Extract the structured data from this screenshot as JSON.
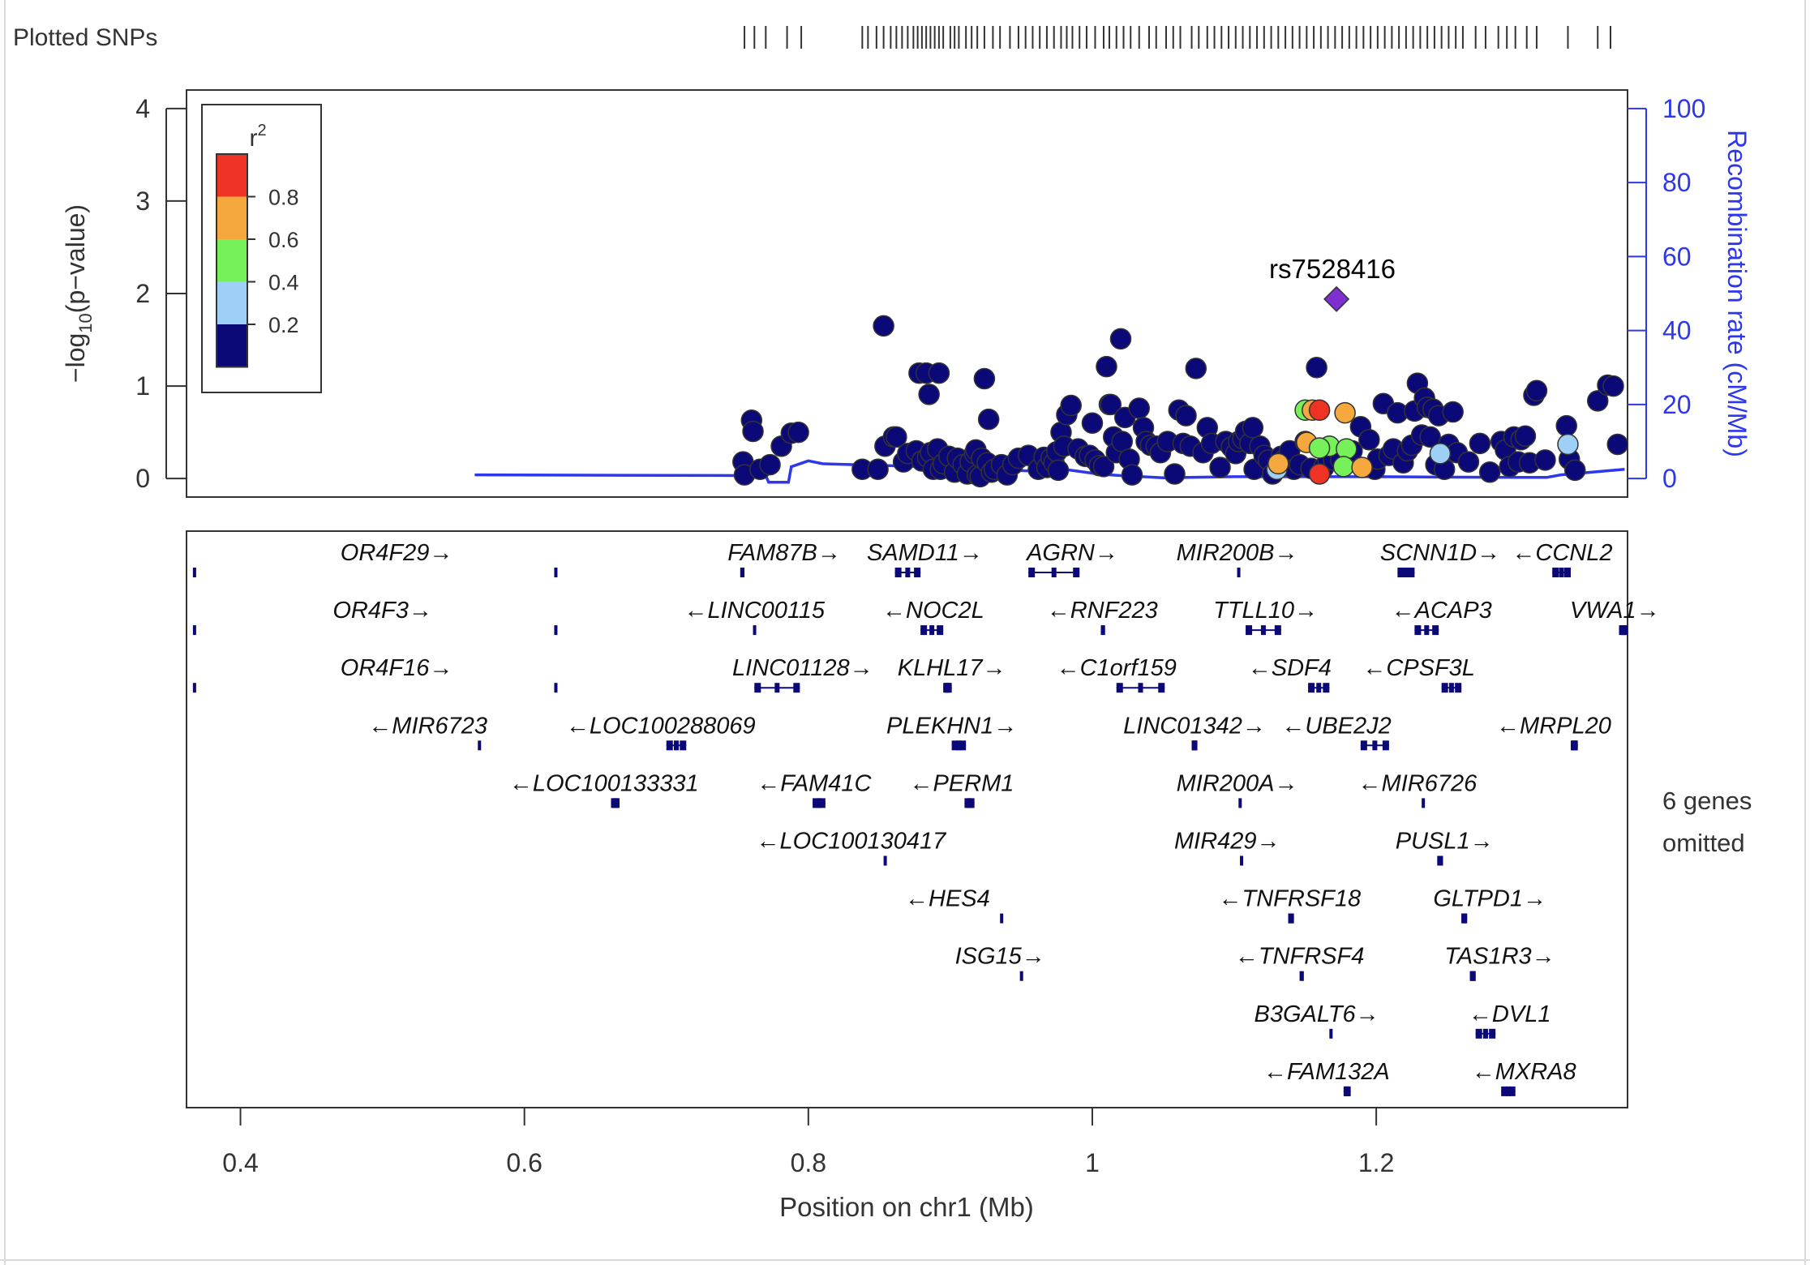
{
  "header": {
    "plotted_snps_label": "Plotted SNPs"
  },
  "chart_data": {
    "type": "scatter",
    "title": "",
    "xlabel": "Position on chr1 (Mb)",
    "ylabel_main": "−log",
    "ylabel_sub": "10",
    "ylabel_tail": "(p−value)",
    "y2label": "Recombination rate (cM/Mb)",
    "xlim": [
      0.362,
      1.377
    ],
    "ylim": [
      -0.2,
      4.2
    ],
    "y2lim": [
      -5,
      105
    ],
    "x_ticks": [
      0.4,
      0.6,
      0.8,
      1.0,
      1.2
    ],
    "x_tick_labels": [
      "0.4",
      "0.6",
      "0.8",
      "1",
      "1.2"
    ],
    "y_ticks": [
      0,
      1,
      2,
      3,
      4
    ],
    "y_tick_labels": [
      "0",
      "1",
      "2",
      "3",
      "4"
    ],
    "y2_ticks": [
      0,
      20,
      40,
      60,
      80,
      100
    ],
    "y2_tick_labels": [
      "0",
      "20",
      "40",
      "60",
      "80",
      "100"
    ],
    "legend": {
      "title": "r",
      "title_sup": "2",
      "placement": "top-left",
      "bins": [
        {
          "color": "#ee3224",
          "range": [
            0.8,
            1.0
          ]
        },
        {
          "color": "#f4a83e",
          "range": [
            0.6,
            0.8
          ]
        },
        {
          "color": "#77f15a",
          "range": [
            0.4,
            0.6
          ]
        },
        {
          "color": "#9ed0f7",
          "range": [
            0.2,
            0.4
          ]
        },
        {
          "color": "#0b0878",
          "range": [
            0.0,
            0.2
          ]
        }
      ],
      "labels": [
        "0.8",
        "0.6",
        "0.4",
        "0.2"
      ]
    },
    "lead_snp": {
      "name": "rs7528416",
      "x": 1.172,
      "y": 1.94,
      "color": "#7d2fd0"
    },
    "colors": {
      "ld_low": "#0b0878",
      "recomb": "#2d37ee",
      "gene": "#0b0878"
    },
    "snps_ld_low": [
      [
        0.754,
        0.18
      ],
      [
        0.755,
        0.04
      ],
      [
        0.76,
        0.63
      ],
      [
        0.761,
        0.51
      ],
      [
        0.766,
        0.1
      ],
      [
        0.773,
        0.15
      ],
      [
        0.781,
        0.35
      ],
      [
        0.788,
        0.49
      ],
      [
        0.793,
        0.5
      ],
      [
        0.838,
        0.1
      ],
      [
        0.849,
        0.1
      ],
      [
        0.853,
        1.65
      ],
      [
        0.854,
        0.35
      ],
      [
        0.86,
        0.45
      ],
      [
        0.862,
        0.45
      ],
      [
        0.867,
        0.18
      ],
      [
        0.87,
        0.27
      ],
      [
        0.876,
        0.3
      ],
      [
        0.878,
        1.14
      ],
      [
        0.88,
        0.19
      ],
      [
        0.883,
        1.14
      ],
      [
        0.884,
        0.23
      ],
      [
        0.885,
        0.91
      ],
      [
        0.886,
        0.28
      ],
      [
        0.888,
        0.1
      ],
      [
        0.891,
        0.32
      ],
      [
        0.892,
        1.14
      ],
      [
        0.893,
        0.1
      ],
      [
        0.895,
        0.16
      ],
      [
        0.899,
        0.24
      ],
      [
        0.903,
        0.07
      ],
      [
        0.905,
        0.22
      ],
      [
        0.909,
        0.15
      ],
      [
        0.912,
        0.05
      ],
      [
        0.914,
        0.18
      ],
      [
        0.917,
        0.27
      ],
      [
        0.918,
        0.31
      ],
      [
        0.919,
        0.04
      ],
      [
        0.921,
        0.02
      ],
      [
        0.922,
        0.22
      ],
      [
        0.924,
        1.08
      ],
      [
        0.926,
        0.17
      ],
      [
        0.927,
        0.64
      ],
      [
        0.929,
        0.07
      ],
      [
        0.931,
        0.1
      ],
      [
        0.936,
        0.15
      ],
      [
        0.94,
        0.04
      ],
      [
        0.944,
        0.15
      ],
      [
        0.948,
        0.22
      ],
      [
        0.955,
        0.25
      ],
      [
        0.962,
        0.1
      ],
      [
        0.966,
        0.23
      ],
      [
        0.968,
        0.12
      ],
      [
        0.971,
        0.22
      ],
      [
        0.973,
        0.17
      ],
      [
        0.975,
        0.29
      ],
      [
        0.976,
        0.09
      ],
      [
        0.978,
        0.5
      ],
      [
        0.98,
        0.35
      ],
      [
        0.982,
        0.69
      ],
      [
        0.985,
        0.79
      ],
      [
        0.99,
        0.32
      ],
      [
        0.995,
        0.24
      ],
      [
        0.998,
        0.25
      ],
      [
        1.0,
        0.6
      ],
      [
        1.002,
        0.2
      ],
      [
        1.005,
        0.14
      ],
      [
        1.008,
        0.13
      ],
      [
        1.01,
        1.21
      ],
      [
        1.012,
        0.8
      ],
      [
        1.013,
        0.8
      ],
      [
        1.015,
        0.45
      ],
      [
        1.017,
        0.28
      ],
      [
        1.02,
        1.51
      ],
      [
        1.021,
        0.4
      ],
      [
        1.023,
        0.66
      ],
      [
        1.026,
        0.21
      ],
      [
        1.028,
        0.04
      ],
      [
        1.033,
        0.76
      ],
      [
        1.036,
        0.55
      ],
      [
        1.038,
        0.4
      ],
      [
        1.041,
        0.36
      ],
      [
        1.045,
        0.35
      ],
      [
        1.048,
        0.28
      ],
      [
        1.053,
        0.4
      ],
      [
        1.058,
        0.05
      ],
      [
        1.061,
        0.74
      ],
      [
        1.064,
        0.38
      ],
      [
        1.066,
        0.68
      ],
      [
        1.069,
        0.35
      ],
      [
        1.073,
        1.19
      ],
      [
        1.078,
        0.28
      ],
      [
        1.081,
        0.55
      ],
      [
        1.084,
        0.38
      ],
      [
        1.09,
        0.12
      ],
      [
        1.094,
        0.4
      ],
      [
        1.098,
        0.34
      ],
      [
        1.101,
        0.27
      ],
      [
        1.103,
        0.4
      ],
      [
        1.106,
        0.43
      ],
      [
        1.108,
        0.51
      ],
      [
        1.111,
        0.38
      ],
      [
        1.113,
        0.55
      ],
      [
        1.114,
        0.1
      ],
      [
        1.118,
        0.35
      ],
      [
        1.121,
        0.25
      ],
      [
        1.124,
        0.2
      ],
      [
        1.127,
        0.05
      ],
      [
        1.133,
        0.24
      ],
      [
        1.135,
        0.2
      ],
      [
        1.139,
        0.3
      ],
      [
        1.142,
        0.1
      ],
      [
        1.146,
        0.15
      ],
      [
        1.15,
        0.4
      ],
      [
        1.154,
        0.11
      ],
      [
        1.158,
        1.2
      ],
      [
        1.163,
        0.12
      ],
      [
        1.166,
        0.2
      ],
      [
        1.17,
        0.2
      ],
      [
        1.175,
        0.2
      ],
      [
        1.183,
        0.3
      ],
      [
        1.189,
        0.56
      ],
      [
        1.195,
        0.42
      ],
      [
        1.199,
        0.1
      ],
      [
        1.201,
        0.21
      ],
      [
        1.205,
        0.81
      ],
      [
        1.209,
        0.25
      ],
      [
        1.212,
        0.32
      ],
      [
        1.215,
        0.71
      ],
      [
        1.219,
        0.17
      ],
      [
        1.222,
        0.3
      ],
      [
        1.225,
        0.36
      ],
      [
        1.227,
        0.73
      ],
      [
        1.229,
        1.03
      ],
      [
        1.232,
        0.47
      ],
      [
        1.234,
        0.87
      ],
      [
        1.236,
        0.77
      ],
      [
        1.238,
        0.45
      ],
      [
        1.24,
        0.75
      ],
      [
        1.242,
        0.15
      ],
      [
        1.244,
        0.68
      ],
      [
        1.248,
        0.1
      ],
      [
        1.251,
        0.37
      ],
      [
        1.254,
        0.72
      ],
      [
        1.257,
        0.28
      ],
      [
        1.265,
        0.18
      ],
      [
        1.273,
        0.38
      ],
      [
        1.28,
        0.07
      ],
      [
        1.288,
        0.4
      ],
      [
        1.291,
        0.31
      ],
      [
        1.294,
        0.13
      ],
      [
        1.297,
        0.45
      ],
      [
        1.3,
        0.18
      ],
      [
        1.302,
        0.42
      ],
      [
        1.305,
        0.46
      ],
      [
        1.308,
        0.17
      ],
      [
        1.311,
        0.9
      ],
      [
        1.313,
        0.95
      ],
      [
        1.319,
        0.2
      ],
      [
        1.334,
        0.57
      ],
      [
        1.336,
        0.21
      ],
      [
        1.34,
        0.09
      ],
      [
        1.356,
        0.84
      ],
      [
        1.363,
        1.01
      ],
      [
        1.367,
        1.0
      ],
      [
        1.37,
        0.37
      ]
    ],
    "snps_ld_colored": [
      {
        "x": 1.15,
        "y": 0.74,
        "color": "#77f15a"
      },
      {
        "x": 1.155,
        "y": 0.74,
        "color": "#f4a83e"
      },
      {
        "x": 1.16,
        "y": 0.74,
        "color": "#ee3224"
      },
      {
        "x": 1.178,
        "y": 0.71,
        "color": "#f4a83e"
      },
      {
        "x": 1.151,
        "y": 0.39,
        "color": "#f4a83e"
      },
      {
        "x": 1.167,
        "y": 0.35,
        "color": "#77f15a"
      },
      {
        "x": 1.16,
        "y": 0.33,
        "color": "#77f15a"
      },
      {
        "x": 1.16,
        "y": 0.05,
        "color": "#ee3224"
      },
      {
        "x": 1.179,
        "y": 0.32,
        "color": "#77f15a"
      },
      {
        "x": 1.177,
        "y": 0.13,
        "color": "#77f15a"
      },
      {
        "x": 1.19,
        "y": 0.12,
        "color": "#f4a83e"
      },
      {
        "x": 1.245,
        "y": 0.27,
        "color": "#9ed0f7"
      },
      {
        "x": 1.335,
        "y": 0.37,
        "color": "#9ed0f7"
      },
      {
        "x": 1.13,
        "y": 0.1,
        "color": "#9ed0f7"
      },
      {
        "x": 1.131,
        "y": 0.16,
        "color": "#f4a83e"
      }
    ],
    "recomb_line": [
      [
        0.565,
        1.0
      ],
      [
        0.755,
        0.8
      ],
      [
        0.77,
        0.8
      ],
      [
        0.772,
        -1.0
      ],
      [
        0.786,
        -1.0
      ],
      [
        0.788,
        3.2
      ],
      [
        0.8,
        4.8
      ],
      [
        0.81,
        4.0
      ],
      [
        0.9,
        3.0
      ],
      [
        0.96,
        2.0
      ],
      [
        0.98,
        2.5
      ],
      [
        1.005,
        1.2
      ],
      [
        1.02,
        0.8
      ],
      [
        1.05,
        0.2
      ],
      [
        1.1,
        0.5
      ],
      [
        1.2,
        0.5
      ],
      [
        1.3,
        0.3
      ],
      [
        1.32,
        0.3
      ],
      [
        1.33,
        1.0
      ],
      [
        1.375,
        2.5
      ]
    ],
    "plotted_snp_positions": [
      0.755,
      0.762,
      0.77,
      0.785,
      0.795,
      0.838,
      0.842,
      0.848,
      0.853,
      0.858,
      0.862,
      0.866,
      0.87,
      0.874,
      0.877,
      0.88,
      0.883,
      0.886,
      0.889,
      0.892,
      0.895,
      0.9,
      0.903,
      0.906,
      0.911,
      0.915,
      0.919,
      0.924,
      0.93,
      0.935,
      0.942,
      0.948,
      0.953,
      0.958,
      0.963,
      0.968,
      0.973,
      0.978,
      0.982,
      0.986,
      0.991,
      0.996,
      1.002,
      1.008,
      1.012,
      1.017,
      1.022,
      1.027,
      1.033,
      1.04,
      1.045,
      1.052,
      1.057,
      1.062,
      1.07,
      1.075,
      1.081,
      1.086,
      1.091,
      1.096,
      1.101,
      1.106,
      1.111,
      1.116,
      1.121,
      1.126,
      1.131,
      1.136,
      1.141,
      1.146,
      1.151,
      1.156,
      1.161,
      1.166,
      1.171,
      1.176,
      1.181,
      1.186,
      1.191,
      1.196,
      1.201,
      1.206,
      1.211,
      1.216,
      1.221,
      1.226,
      1.231,
      1.236,
      1.241,
      1.246,
      1.251,
      1.256,
      1.261,
      1.27,
      1.277,
      1.286,
      1.292,
      1.298,
      1.306,
      1.313,
      1.335,
      1.356,
      1.365
    ],
    "genes": [
      {
        "name": "OR4F29",
        "dir": "+",
        "row": 0,
        "x": 0.51,
        "start": 0.3665,
        "end": 0.3665
      },
      {
        "name": "",
        "dir": "",
        "row": 0,
        "x": 0.622,
        "start": 0.621,
        "end": 0.622
      },
      {
        "name": "FAM87B",
        "dir": "+",
        "row": 0,
        "x": 0.783,
        "start": 0.752,
        "end": 0.755
      },
      {
        "name": "SAMD11",
        "dir": "+",
        "row": 0,
        "x": 0.882,
        "start": 0.861,
        "end": 0.879
      },
      {
        "name": "AGRN",
        "dir": "+",
        "row": 0,
        "x": 0.986,
        "start": 0.955,
        "end": 0.991
      },
      {
        "name": "MIR200B",
        "dir": "+",
        "row": 0,
        "x": 1.102,
        "start": 1.102,
        "end": 1.1022
      },
      {
        "name": "SCNN1D",
        "dir": "+",
        "row": 0,
        "x": 1.245,
        "start": 1.215,
        "end": 1.227
      },
      {
        "name": "CCNL2",
        "dir": "-",
        "row": 0,
        "x": 1.331,
        "start": 1.324,
        "end": 1.337
      },
      {
        "name": "OR4F3",
        "dir": "+",
        "row": 1,
        "x": 0.5,
        "start": 0.3665,
        "end": 0.3665
      },
      {
        "name": "",
        "dir": "",
        "row": 1,
        "x": 0.622,
        "start": 0.621,
        "end": 0.622
      },
      {
        "name": "LINC00115",
        "dir": "-",
        "row": 1,
        "x": 0.762,
        "start": 0.761,
        "end": 0.763
      },
      {
        "name": "NOC2L",
        "dir": "-",
        "row": 1,
        "x": 0.888,
        "start": 0.879,
        "end": 0.895
      },
      {
        "name": "RNF223",
        "dir": "-",
        "row": 1,
        "x": 1.007,
        "start": 1.006,
        "end": 1.009
      },
      {
        "name": "TTLL10",
        "dir": "+",
        "row": 1,
        "x": 1.122,
        "start": 1.108,
        "end": 1.133
      },
      {
        "name": "ACAP3",
        "dir": "-",
        "row": 1,
        "x": 1.246,
        "start": 1.227,
        "end": 1.244
      },
      {
        "name": "VWA1",
        "dir": "+",
        "row": 1,
        "x": 1.368,
        "start": 1.371,
        "end": 1.377
      },
      {
        "name": "OR4F16",
        "dir": "+",
        "row": 2,
        "x": 0.51,
        "start": 0.3665,
        "end": 0.3665
      },
      {
        "name": "",
        "dir": "",
        "row": 2,
        "x": 0.622,
        "start": 0.621,
        "end": 0.622
      },
      {
        "name": "LINC01128",
        "dir": "+",
        "row": 2,
        "x": 0.796,
        "start": 0.762,
        "end": 0.794
      },
      {
        "name": "KLHL17",
        "dir": "+",
        "row": 2,
        "x": 0.901,
        "start": 0.895,
        "end": 0.901
      },
      {
        "name": "C1orf159",
        "dir": "-",
        "row": 2,
        "x": 1.017,
        "start": 1.017,
        "end": 1.051
      },
      {
        "name": "SDF4",
        "dir": "-",
        "row": 2,
        "x": 1.139,
        "start": 1.152,
        "end": 1.167
      },
      {
        "name": "CPSF3L",
        "dir": "-",
        "row": 2,
        "x": 1.23,
        "start": 1.246,
        "end": 1.26
      },
      {
        "name": "MIR6723",
        "dir": "-",
        "row": 3,
        "x": 0.532,
        "start": 0.5672,
        "end": 0.5674
      },
      {
        "name": "LOC100288069",
        "dir": "-",
        "row": 3,
        "x": 0.696,
        "start": 0.7,
        "end": 0.714
      },
      {
        "name": "PLEKHN1",
        "dir": "+",
        "row": 3,
        "x": 0.901,
        "start": 0.901,
        "end": 0.911
      },
      {
        "name": "LINC01342",
        "dir": "+",
        "row": 3,
        "x": 1.072,
        "start": 1.07,
        "end": 1.074
      },
      {
        "name": "UBE2J2",
        "dir": "-",
        "row": 3,
        "x": 1.172,
        "start": 1.189,
        "end": 1.209
      },
      {
        "name": "MRPL20",
        "dir": "-",
        "row": 3,
        "x": 1.325,
        "start": 1.337,
        "end": 1.342
      },
      {
        "name": "LOC100133331",
        "dir": "-",
        "row": 4,
        "x": 0.656,
        "start": 0.661,
        "end": 0.667
      },
      {
        "name": "FAM41C",
        "dir": "-",
        "row": 4,
        "x": 0.804,
        "start": 0.803,
        "end": 0.812
      },
      {
        "name": "PERM1",
        "dir": "-",
        "row": 4,
        "x": 0.908,
        "start": 0.91,
        "end": 0.917
      },
      {
        "name": "MIR200A",
        "dir": "+",
        "row": 4,
        "x": 1.102,
        "start": 1.103,
        "end": 1.1032
      },
      {
        "name": "MIR6726",
        "dir": "-",
        "row": 4,
        "x": 1.229,
        "start": 1.232,
        "end": 1.2322
      },
      {
        "name": "LOC100130417",
        "dir": "-",
        "row": 5,
        "x": 0.83,
        "start": 0.853,
        "end": 0.855
      },
      {
        "name": "MIR429",
        "dir": "+",
        "row": 5,
        "x": 1.095,
        "start": 1.104,
        "end": 1.1042
      },
      {
        "name": "PUSL1",
        "dir": "+",
        "row": 5,
        "x": 1.248,
        "start": 1.243,
        "end": 1.247
      },
      {
        "name": "HES4",
        "dir": "-",
        "row": 6,
        "x": 0.898,
        "start": 0.935,
        "end": 0.936
      },
      {
        "name": "TNFRSF18",
        "dir": "-",
        "row": 6,
        "x": 1.139,
        "start": 1.138,
        "end": 1.142
      },
      {
        "name": "GLTPD1",
        "dir": "+",
        "row": 6,
        "x": 1.28,
        "start": 1.26,
        "end": 1.264
      },
      {
        "name": "ISG15",
        "dir": "+",
        "row": 7,
        "x": 0.935,
        "start": 0.949,
        "end": 0.951
      },
      {
        "name": "TNFRSF4",
        "dir": "-",
        "row": 7,
        "x": 1.146,
        "start": 1.146,
        "end": 1.149
      },
      {
        "name": "TAS1R3",
        "dir": "+",
        "row": 7,
        "x": 1.287,
        "start": 1.266,
        "end": 1.27
      },
      {
        "name": "B3GALT6",
        "dir": "+",
        "row": 8,
        "x": 1.158,
        "start": 1.167,
        "end": 1.169
      },
      {
        "name": "DVL1",
        "dir": "-",
        "row": 8,
        "x": 1.294,
        "start": 1.27,
        "end": 1.284
      },
      {
        "name": "FAM132A",
        "dir": "-",
        "row": 9,
        "x": 1.165,
        "start": 1.177,
        "end": 1.182
      },
      {
        "name": "MXRA8",
        "dir": "-",
        "row": 9,
        "x": 1.304,
        "start": 1.288,
        "end": 1.298
      }
    ],
    "omitted_note_line1": "6 genes",
    "omitted_note_line2": "omitted"
  }
}
